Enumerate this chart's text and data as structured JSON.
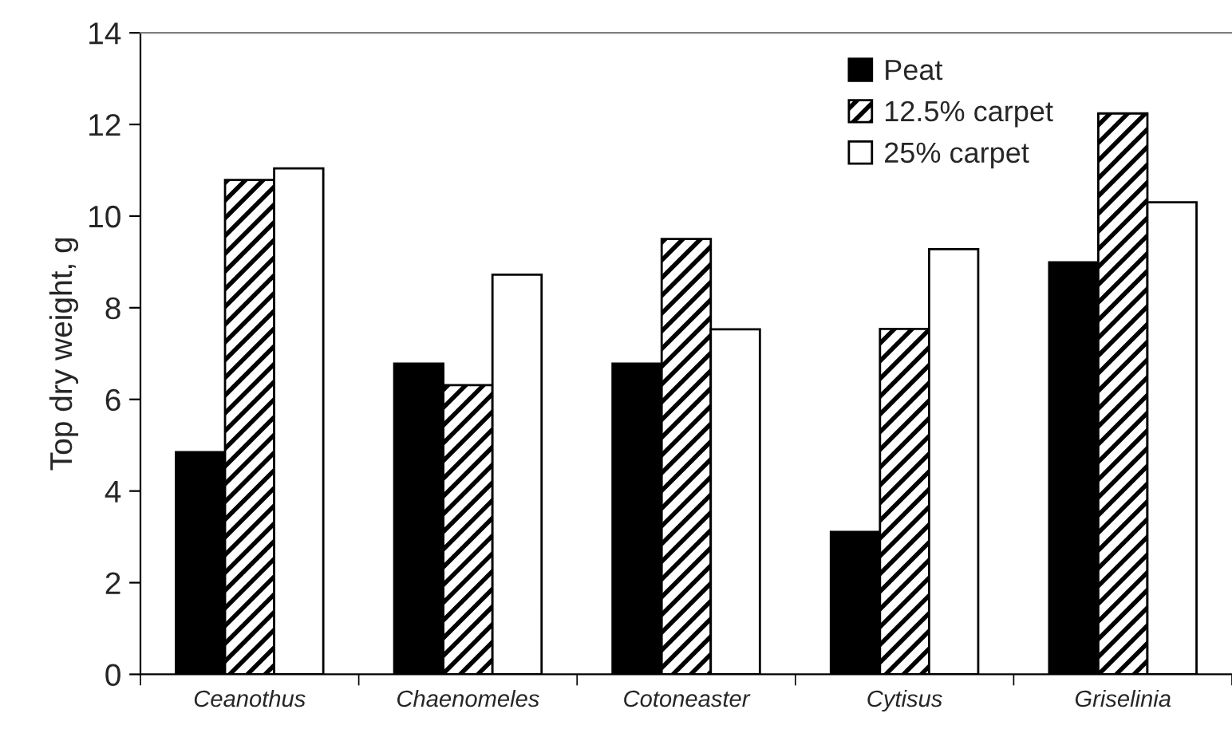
{
  "chart_data": {
    "type": "bar",
    "ylabel": "Top dry weight, g",
    "categories": [
      "Ceanothus",
      "Chaenomeles",
      "Cotoneaster",
      "Cytisus",
      "Griselinia"
    ],
    "series": [
      {
        "name": "Peat",
        "color": "#000000",
        "values": [
          4.85,
          6.78,
          6.78,
          3.11,
          8.99
        ]
      },
      {
        "name": "12.5% carpet",
        "color": "#000000",
        "values": [
          10.79,
          6.31,
          9.5,
          7.54,
          12.24
        ]
      },
      {
        "name": "25% carpet",
        "color": "#ffffff",
        "values": [
          11.04,
          8.72,
          7.53,
          9.28,
          10.3
        ]
      }
    ],
    "ylim": [
      0,
      14
    ],
    "yticks": [
      0,
      2,
      4,
      6,
      8,
      10,
      12,
      14
    ],
    "grid": false,
    "legend": "top right"
  }
}
